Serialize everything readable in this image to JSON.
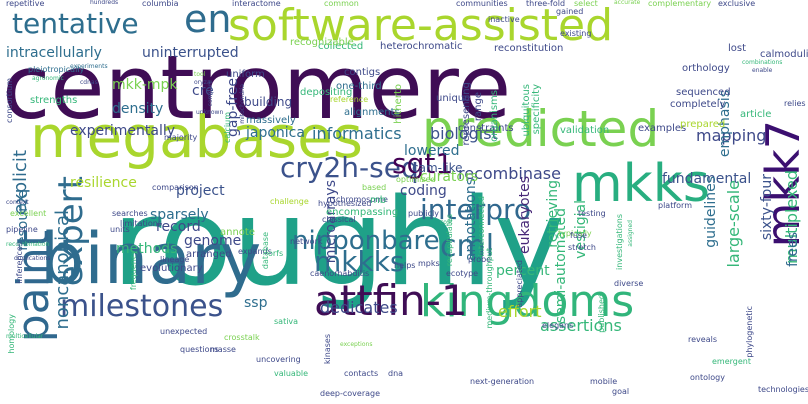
{
  "word_cloud": {
    "words": [
      {
        "text": "centromere",
        "color": "#3f0d55"
      },
      {
        "text": "roughly",
        "color": "#1fa188"
      },
      {
        "text": "megabases",
        "color": "#a9d62d"
      },
      {
        "text": "software-assisted",
        "color": "#a9d62d"
      },
      {
        "text": "binary",
        "color": "#2f6c8e"
      },
      {
        "text": "predicted",
        "color": "#7ad151"
      },
      {
        "text": "kingdoms",
        "color": "#31b57b"
      },
      {
        "text": "tentative",
        "color": "#2e6e8e"
      },
      {
        "text": "en",
        "color": "#2f6c8e"
      },
      {
        "text": "mkks",
        "color": "#28ae80"
      },
      {
        "text": "paint",
        "color": "#30688e"
      },
      {
        "text": "attfin-1",
        "color": "#3f0d55"
      },
      {
        "text": "milestones",
        "color": "#3b528b"
      },
      {
        "text": "mkk7",
        "color": "#3b0f70"
      },
      {
        "text": "cml",
        "color": "#2e6e8e"
      },
      {
        "text": "cry2h-seq",
        "color": "#3b528b"
      },
      {
        "text": "expert",
        "color": "#2f6c8e"
      },
      {
        "text": "interpro",
        "color": "#31688e"
      },
      {
        "text": "sgt1",
        "color": "#440154"
      },
      {
        "text": "mkkks",
        "color": "#2e6e8e"
      },
      {
        "text": "intracellularly",
        "color": "#2e6e8e"
      },
      {
        "text": "uninterrupted",
        "color": "#3b528b"
      },
      {
        "text": "nipponbare",
        "color": "#2e6e8e"
      },
      {
        "text": "experimentally",
        "color": "#3e4989"
      },
      {
        "text": "informatics",
        "color": "#2e6e8e"
      },
      {
        "text": "biologist",
        "color": "#3b528b"
      },
      {
        "text": "recombinase",
        "color": "#3e4989"
      },
      {
        "text": "japonica",
        "color": "#2e6e8e"
      },
      {
        "text": "explicit",
        "color": "#2f6c8e"
      },
      {
        "text": "resilience",
        "color": "#a9d62d"
      },
      {
        "text": "project",
        "color": "#3b528b"
      },
      {
        "text": "coding",
        "color": "#3e4989"
      },
      {
        "text": "fundamental",
        "color": "#3b528b"
      },
      {
        "text": "guidelines",
        "color": "#2e6e8e"
      },
      {
        "text": "sixty-four",
        "color": "#3b528b"
      },
      {
        "text": "large-scale",
        "color": "#35b779"
      },
      {
        "text": "multiplexed",
        "color": "#35b779"
      },
      {
        "text": "semi-automated",
        "color": "#35b779"
      },
      {
        "text": "annotations",
        "color": "#2e6e8e"
      },
      {
        "text": "vestigial",
        "color": "#35b779"
      },
      {
        "text": "eukaryotes",
        "color": "#482878"
      },
      {
        "text": "sparsely",
        "color": "#2e6e8e"
      },
      {
        "text": "noncanonical",
        "color": "#2e6e8e"
      },
      {
        "text": "microarrays",
        "color": "#3e4989"
      },
      {
        "text": "methods",
        "color": "#35b779"
      },
      {
        "text": "genome",
        "color": "#3e4989"
      },
      {
        "text": "ssp",
        "color": "#2e6e8e"
      },
      {
        "text": "percent",
        "color": "#35b779"
      },
      {
        "text": "dedicates",
        "color": "#3e4989"
      },
      {
        "text": "assertions",
        "color": "#35b779"
      },
      {
        "text": "effort",
        "color": "#a9d62d"
      },
      {
        "text": "resource",
        "color": "#2e6e8e"
      },
      {
        "text": "density",
        "color": "#2e6e8e"
      },
      {
        "text": "mkk-mpk",
        "color": "#7ad151"
      },
      {
        "text": "cre",
        "color": "#3e4989"
      },
      {
        "text": "gap-free",
        "color": "#3e4989"
      },
      {
        "text": "mapping",
        "color": "#3e4989"
      },
      {
        "text": "emphasis",
        "color": "#2e6e8e"
      },
      {
        "text": "lowered",
        "color": "#2e6e8e"
      },
      {
        "text": "cam-like",
        "color": "#3b528b"
      },
      {
        "text": "curators",
        "color": "#7ad151"
      },
      {
        "text": "retrieving",
        "color": "#35b779"
      },
      {
        "text": "frees",
        "color": "#31688e"
      },
      {
        "text": "record",
        "color": "#3e4989"
      },
      {
        "text": "strengths",
        "color": "#35b779"
      },
      {
        "text": "uniform",
        "color": "#3e4989"
      },
      {
        "text": "building",
        "color": "#3e4989"
      },
      {
        "text": "massively",
        "color": "#2e6e8e"
      },
      {
        "text": "contigs",
        "color": "#3e4989"
      },
      {
        "text": "one-third",
        "color": "#2e6e8e"
      },
      {
        "text": "alignments",
        "color": "#2e6e8e"
      },
      {
        "text": "orthology",
        "color": "#3e4989"
      },
      {
        "text": "sequenced",
        "color": "#3e4989"
      },
      {
        "text": "completely",
        "color": "#3e4989"
      },
      {
        "text": "examples",
        "color": "#3e4989"
      },
      {
        "text": "article",
        "color": "#35b779"
      },
      {
        "text": "prepared",
        "color": "#a9d62d"
      },
      {
        "text": "calmodulins",
        "color": "#3e4989"
      },
      {
        "text": "heterochromatic",
        "color": "#3e4989"
      },
      {
        "text": "reconstitution",
        "color": "#3e4989"
      },
      {
        "text": "collected",
        "color": "#35b779"
      },
      {
        "text": "recognizable",
        "color": "#7ad151"
      },
      {
        "text": "constraints",
        "color": "#3e4989"
      },
      {
        "text": "validation",
        "color": "#35b779"
      },
      {
        "text": "majority",
        "color": "#3e4989"
      },
      {
        "text": "repetitive",
        "color": "#3e4989"
      },
      {
        "text": "hundreds",
        "color": "#3e4989"
      },
      {
        "text": "columbia",
        "color": "#3e4989"
      },
      {
        "text": "interactome",
        "color": "#3e4989"
      },
      {
        "text": "common",
        "color": "#7ad151"
      },
      {
        "text": "communities",
        "color": "#3e4989"
      },
      {
        "text": "three-fold",
        "color": "#3e4989"
      },
      {
        "text": "gained",
        "color": "#3e4989"
      },
      {
        "text": "select",
        "color": "#7ad151"
      },
      {
        "text": "accurate",
        "color": "#7ad151"
      },
      {
        "text": "complementary",
        "color": "#7ad151"
      },
      {
        "text": "exclusive",
        "color": "#3e4989"
      },
      {
        "text": "inactive",
        "color": "#3e4989"
      },
      {
        "text": "existing",
        "color": "#3e4989"
      },
      {
        "text": "lost",
        "color": "#3e4989"
      },
      {
        "text": "combinations",
        "color": "#35b779"
      },
      {
        "text": "enable",
        "color": "#3e4989"
      },
      {
        "text": "relies",
        "color": "#3e4989"
      },
      {
        "text": "consortium",
        "color": "#3e4989"
      },
      {
        "text": "pleiotropically",
        "color": "#2e6e8e"
      },
      {
        "text": "agronomic",
        "color": "#35b779"
      },
      {
        "text": "experiments",
        "color": "#2e6e8e"
      },
      {
        "text": "cdnas",
        "color": "#3e4989"
      },
      {
        "text": "tool",
        "color": "#7ad151"
      },
      {
        "text": "oryza",
        "color": "#3e4989"
      },
      {
        "text": "unknown",
        "color": "#3e4989"
      },
      {
        "text": "compare",
        "color": "#3e4989"
      },
      {
        "text": "mitochondria",
        "color": "#3e4989"
      },
      {
        "text": "depositing",
        "color": "#35b779"
      },
      {
        "text": "hitherto",
        "color": "#7ad151"
      },
      {
        "text": "unique",
        "color": "#3e4989"
      },
      {
        "text": "range",
        "color": "#3e4989"
      },
      {
        "text": "organisms",
        "color": "#35b779"
      },
      {
        "text": "ubiquitous",
        "color": "#35b779"
      },
      {
        "text": "specificity",
        "color": "#35b779"
      },
      {
        "text": "representing",
        "color": "#3e4989"
      },
      {
        "text": "reference",
        "color": "#a9d62d"
      },
      {
        "text": "calcium",
        "color": "#35b779"
      },
      {
        "text": "comparison",
        "color": "#3e4989"
      },
      {
        "text": "excellent",
        "color": "#7ad151"
      },
      {
        "text": "pipeline",
        "color": "#3e4989"
      },
      {
        "text": "recombination",
        "color": "#35b779"
      },
      {
        "text": "context",
        "color": "#3e4989"
      },
      {
        "text": "duplications",
        "color": "#3e4989"
      },
      {
        "text": "inferences",
        "color": "#3e4989"
      },
      {
        "text": "units",
        "color": "#3e4989"
      },
      {
        "text": "frequency",
        "color": "#35b779"
      },
      {
        "text": "homology",
        "color": "#35b779"
      },
      {
        "text": "multicellular",
        "color": "#35b779"
      },
      {
        "text": "searches",
        "color": "#3e4989"
      },
      {
        "text": "limitations",
        "color": "#3e4989"
      },
      {
        "text": "lineage",
        "color": "#3e4989"
      },
      {
        "text": "arranged",
        "color": "#3e4989"
      },
      {
        "text": "annote",
        "color": "#7ad151"
      },
      {
        "text": "expands",
        "color": "#3e4989"
      },
      {
        "text": "evolutionary",
        "color": "#3e4989"
      },
      {
        "text": "orfs",
        "color": "#35b779"
      },
      {
        "text": "classical",
        "color": "#3e4989"
      },
      {
        "text": "chromosome",
        "color": "#3e4989"
      },
      {
        "text": "encompassing",
        "color": "#35b779"
      },
      {
        "text": "hypothesized",
        "color": "#3e4989"
      },
      {
        "text": "based",
        "color": "#7ad151"
      },
      {
        "text": "mb",
        "color": "#35b779"
      },
      {
        "text": "optimized",
        "color": "#7ad151"
      },
      {
        "text": "database",
        "color": "#35b779"
      },
      {
        "text": "challenge",
        "color": "#a9d62d"
      },
      {
        "text": "network",
        "color": "#3e4989"
      },
      {
        "text": "caenorhabditis",
        "color": "#3e4989"
      },
      {
        "text": "publicly",
        "color": "#3e4989"
      },
      {
        "text": "ecotype",
        "color": "#3e4989"
      },
      {
        "text": "probe",
        "color": "#3e4989"
      },
      {
        "text": "mpks",
        "color": "#3e4989"
      },
      {
        "text": "interconnected",
        "color": "#35b779"
      },
      {
        "text": "medium-throughput",
        "color": "#35b779"
      },
      {
        "text": "recapitulates",
        "color": "#35b779"
      },
      {
        "text": "cost",
        "color": "#35b779"
      },
      {
        "text": "testing",
        "color": "#3e4989"
      },
      {
        "text": "platform",
        "color": "#3e4989"
      },
      {
        "text": "typically",
        "color": "#7ad151"
      },
      {
        "text": "investigations",
        "color": "#35b779"
      },
      {
        "text": "assigned",
        "color": "#35b779"
      },
      {
        "text": "fuse",
        "color": "#3e4989"
      },
      {
        "text": "stretch",
        "color": "#3e4989"
      },
      {
        "text": "diverse",
        "color": "#3e4989"
      },
      {
        "text": "published",
        "color": "#35b779"
      },
      {
        "text": "appreciated",
        "color": "#3e4989"
      },
      {
        "text": "elegans",
        "color": "#3e4989"
      },
      {
        "text": "helps",
        "color": "#3e4989"
      },
      {
        "text": "sativa",
        "color": "#35b779"
      },
      {
        "text": "kinases",
        "color": "#3e4989"
      },
      {
        "text": "crosstalk",
        "color": "#7ad151"
      },
      {
        "text": "exceptions",
        "color": "#7ad151"
      },
      {
        "text": "unexpected",
        "color": "#3e4989"
      },
      {
        "text": "masse",
        "color": "#3e4989"
      },
      {
        "text": "questions",
        "color": "#3e4989"
      },
      {
        "text": "uncovering",
        "color": "#3e4989"
      },
      {
        "text": "contacts",
        "color": "#3e4989"
      },
      {
        "text": "dna",
        "color": "#3e4989"
      },
      {
        "text": "next-generation",
        "color": "#3e4989"
      },
      {
        "text": "deep-coverage",
        "color": "#3e4989"
      },
      {
        "text": "valuable",
        "color": "#35b779"
      },
      {
        "text": "mobile",
        "color": "#3e4989"
      },
      {
        "text": "ontology",
        "color": "#3e4989"
      },
      {
        "text": "goal",
        "color": "#3e4989"
      },
      {
        "text": "emergent",
        "color": "#35b779"
      },
      {
        "text": "reveals",
        "color": "#3e4989"
      },
      {
        "text": "technologies",
        "color": "#3e4989"
      },
      {
        "text": "phylogenetic",
        "color": "#3e4989"
      }
    ]
  }
}
